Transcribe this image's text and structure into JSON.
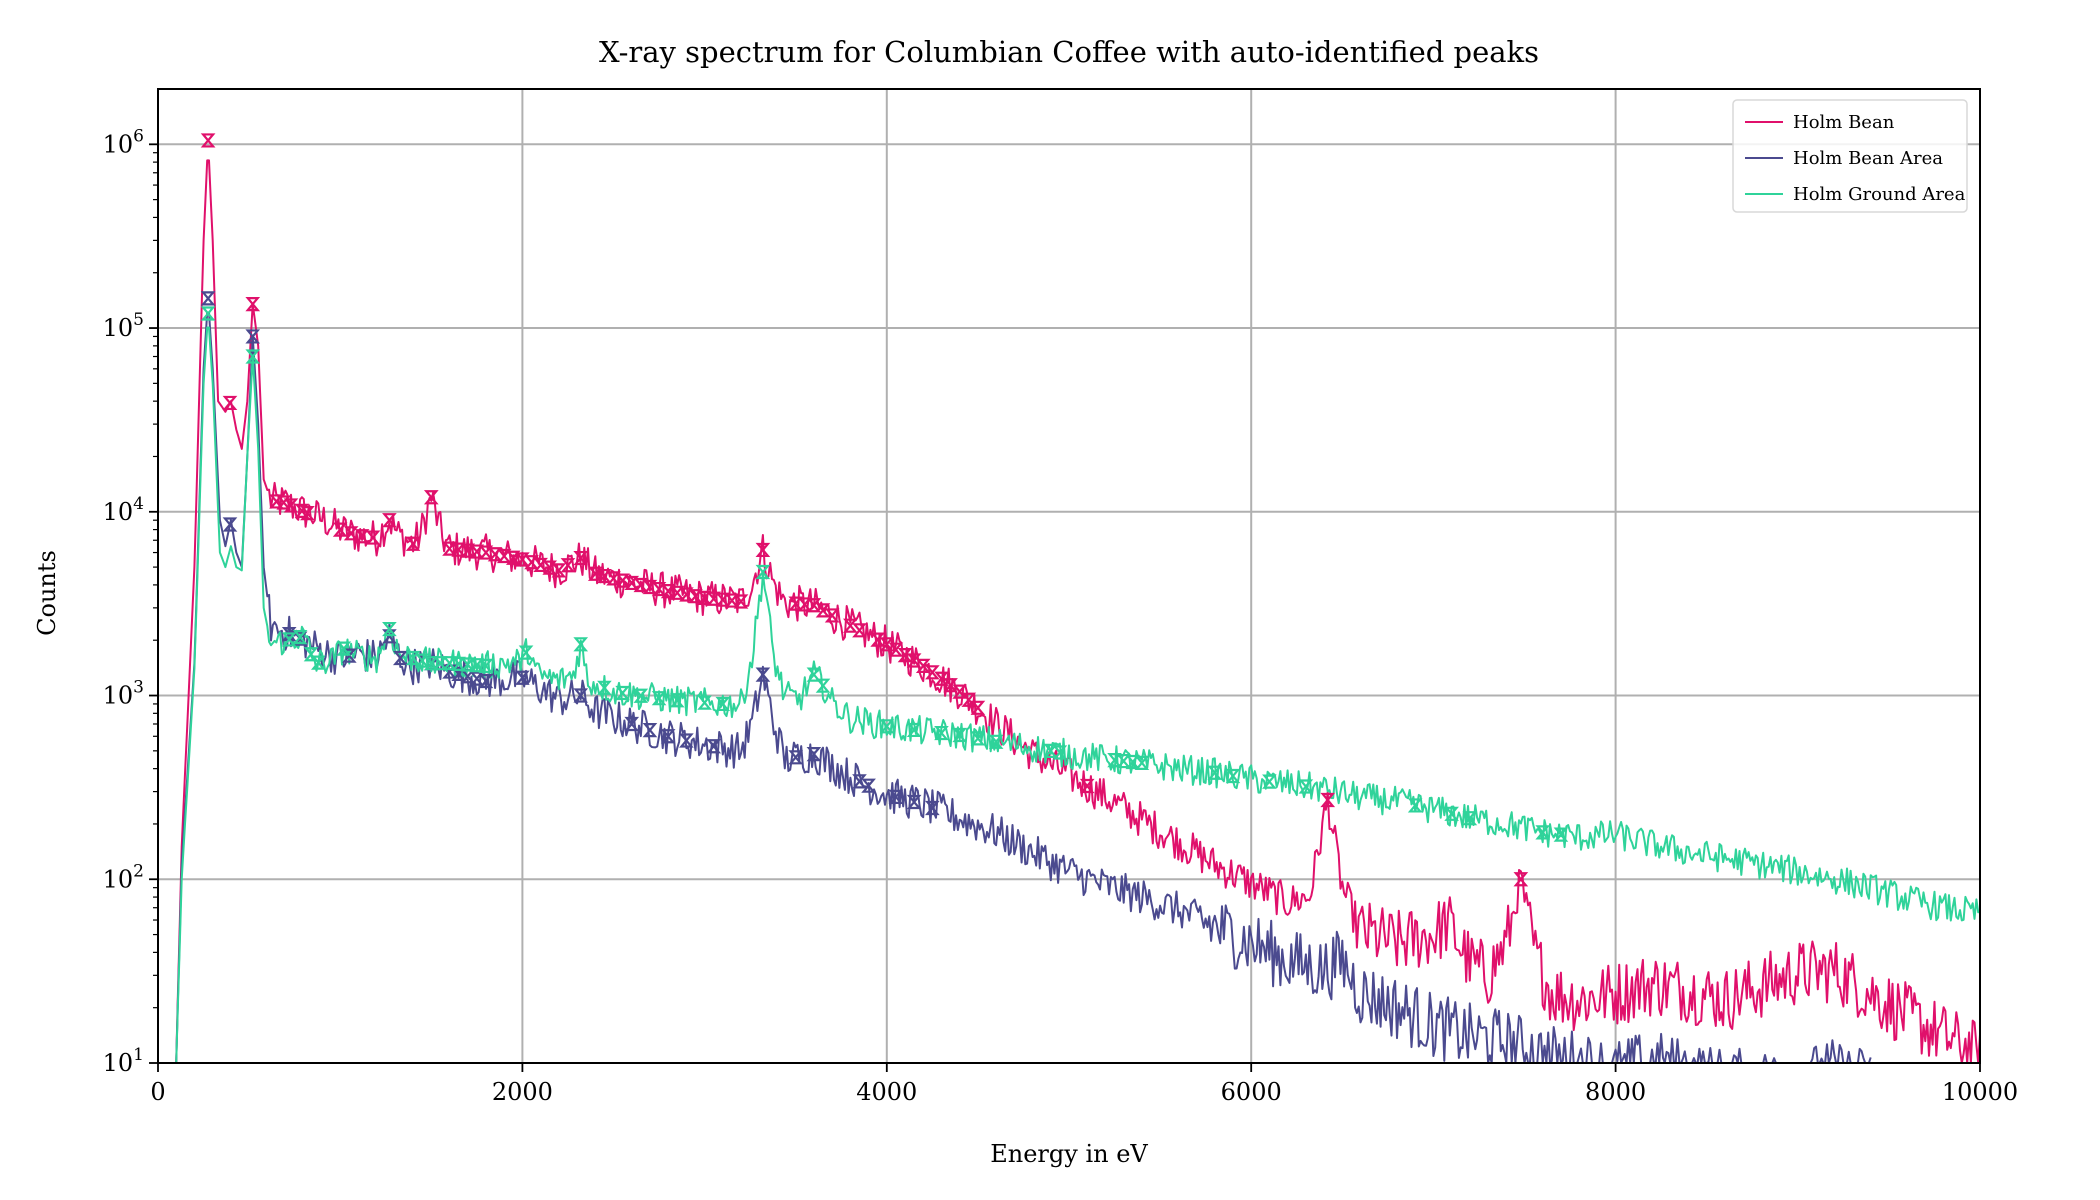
{
  "chart_data": {
    "type": "line",
    "title": "X-ray spectrum for Columbian Coffee with auto-identified peaks",
    "xlabel": "Energy in eV",
    "ylabel": "Counts",
    "xlim": [
      0,
      10000
    ],
    "ylim": [
      10,
      2000000
    ],
    "yscale": "log",
    "grid": true,
    "legend_position": "top-right",
    "x_ticks": [
      0,
      2000,
      4000,
      6000,
      8000,
      10000
    ],
    "y_ticks": [
      {
        "value": 10,
        "base": "10",
        "exp": "1"
      },
      {
        "value": 100,
        "base": "10",
        "exp": "2"
      },
      {
        "value": 1000,
        "base": "10",
        "exp": "3"
      },
      {
        "value": 10000,
        "base": "10",
        "exp": "4"
      },
      {
        "value": 100000,
        "base": "10",
        "exp": "5"
      },
      {
        "value": 1000000,
        "base": "10",
        "exp": "6"
      }
    ],
    "series": [
      {
        "name": "Holm Bean",
        "color": "#e0106b",
        "noise": 0.1,
        "points": [
          [
            100,
            10
          ],
          [
            130,
            150
          ],
          [
            200,
            5000
          ],
          [
            250,
            300000
          ],
          [
            275,
            1050000
          ],
          [
            300,
            300000
          ],
          [
            330,
            40000
          ],
          [
            370,
            35000
          ],
          [
            400,
            40000
          ],
          [
            430,
            28000
          ],
          [
            460,
            22000
          ],
          [
            490,
            40000
          ],
          [
            520,
            135000
          ],
          [
            550,
            80000
          ],
          [
            580,
            15000
          ],
          [
            620,
            11500
          ],
          [
            700,
            11200
          ],
          [
            800,
            10000
          ],
          [
            900,
            9200
          ],
          [
            1000,
            8000
          ],
          [
            1100,
            7400
          ],
          [
            1200,
            7200
          ],
          [
            1270,
            9000
          ],
          [
            1320,
            7500
          ],
          [
            1400,
            6700
          ],
          [
            1440,
            7500
          ],
          [
            1500,
            12000
          ],
          [
            1560,
            7300
          ],
          [
            1600,
            6300
          ],
          [
            1800,
            6000
          ],
          [
            2000,
            5500
          ],
          [
            2200,
            4800
          ],
          [
            2320,
            5600
          ],
          [
            2400,
            4600
          ],
          [
            2600,
            4100
          ],
          [
            2800,
            3700
          ],
          [
            3000,
            3400
          ],
          [
            3200,
            3250
          ],
          [
            3260,
            4000
          ],
          [
            3320,
            6200
          ],
          [
            3380,
            4000
          ],
          [
            3440,
            3200
          ],
          [
            3600,
            3100
          ],
          [
            3800,
            2400
          ],
          [
            4000,
            1900
          ],
          [
            4200,
            1450
          ],
          [
            4400,
            1050
          ],
          [
            4600,
            700
          ],
          [
            4800,
            480
          ],
          [
            5000,
            370
          ],
          [
            5200,
            280
          ],
          [
            5400,
            210
          ],
          [
            5600,
            160
          ],
          [
            5800,
            120
          ],
          [
            6000,
            95
          ],
          [
            6200,
            75
          ],
          [
            6320,
            80
          ],
          [
            6420,
            270
          ],
          [
            6500,
            90
          ],
          [
            6600,
            52
          ],
          [
            6800,
            45
          ],
          [
            7000,
            50
          ],
          [
            7080,
            58
          ],
          [
            7200,
            35
          ],
          [
            7300,
            30
          ],
          [
            7400,
            45
          ],
          [
            7480,
            100
          ],
          [
            7560,
            38
          ],
          [
            7650,
            24
          ],
          [
            7800,
            22
          ],
          [
            8000,
            24
          ],
          [
            8200,
            27
          ],
          [
            8400,
            25
          ],
          [
            8600,
            22
          ],
          [
            8800,
            26
          ],
          [
            9000,
            31
          ],
          [
            9200,
            32
          ],
          [
            9400,
            24
          ],
          [
            9600,
            18
          ],
          [
            9800,
            14
          ],
          [
            10000,
            11
          ]
        ],
        "peaks": [
          275,
          395,
          520,
          650,
          690,
          730,
          790,
          820,
          1000,
          1060,
          1120,
          1180,
          1270,
          1400,
          1500,
          1600,
          1650,
          1700,
          1750,
          1800,
          1850,
          1900,
          1950,
          2000,
          2050,
          2100,
          2150,
          2200,
          2250,
          2320,
          2400,
          2450,
          2500,
          2550,
          2600,
          2650,
          2700,
          2750,
          2800,
          2850,
          2900,
          2950,
          3000,
          3050,
          3100,
          3150,
          3200,
          3320,
          3500,
          3550,
          3600,
          3650,
          3700,
          3800,
          3850,
          3950,
          4000,
          4050,
          4100,
          4150,
          4200,
          4250,
          4300,
          4350,
          4400,
          4450,
          4500,
          5100,
          6420,
          7480
        ]
      },
      {
        "name": "Holm Bean Area",
        "color": "#4b4a8f",
        "noise": 0.1,
        "points": [
          [
            100,
            10
          ],
          [
            130,
            120
          ],
          [
            200,
            1500
          ],
          [
            250,
            60000
          ],
          [
            275,
            145000
          ],
          [
            300,
            60000
          ],
          [
            340,
            9000
          ],
          [
            370,
            6500
          ],
          [
            400,
            9000
          ],
          [
            430,
            6000
          ],
          [
            460,
            5000
          ],
          [
            490,
            20000
          ],
          [
            520,
            90000
          ],
          [
            550,
            30000
          ],
          [
            580,
            5000
          ],
          [
            620,
            2400
          ],
          [
            700,
            2200
          ],
          [
            800,
            2000
          ],
          [
            900,
            1750
          ],
          [
            1000,
            1600
          ],
          [
            1100,
            1700
          ],
          [
            1200,
            1600
          ],
          [
            1270,
            2100
          ],
          [
            1330,
            1600
          ],
          [
            1400,
            1450
          ],
          [
            1500,
            1500
          ],
          [
            1600,
            1350
          ],
          [
            1800,
            1200
          ],
          [
            2000,
            1250
          ],
          [
            2200,
            950
          ],
          [
            2320,
            1000
          ],
          [
            2400,
            820
          ],
          [
            2600,
            700
          ],
          [
            2800,
            600
          ],
          [
            3000,
            540
          ],
          [
            3200,
            500
          ],
          [
            3260,
            700
          ],
          [
            3320,
            1300
          ],
          [
            3380,
            700
          ],
          [
            3440,
            450
          ],
          [
            3600,
            480
          ],
          [
            3800,
            360
          ],
          [
            4000,
            290
          ],
          [
            4200,
            255
          ],
          [
            4400,
            215
          ],
          [
            4600,
            180
          ],
          [
            4800,
            140
          ],
          [
            5000,
            110
          ],
          [
            5200,
            92
          ],
          [
            5400,
            80
          ],
          [
            5600,
            68
          ],
          [
            5800,
            55
          ],
          [
            6000,
            45
          ],
          [
            6200,
            36
          ],
          [
            6400,
            32
          ],
          [
            6500,
            36
          ],
          [
            6600,
            24
          ],
          [
            6800,
            20
          ],
          [
            7000,
            16
          ],
          [
            7200,
            14
          ],
          [
            7400,
            13
          ],
          [
            7600,
            11
          ],
          [
            7800,
            10
          ],
          [
            8000,
            9
          ],
          [
            8200,
            10
          ],
          [
            8400,
            9
          ],
          [
            8600,
            8
          ],
          [
            8800,
            8
          ],
          [
            9000,
            8
          ],
          [
            9200,
            9
          ],
          [
            9400,
            8
          ]
        ],
        "peaks": [
          275,
          395,
          520,
          720,
          780,
          1050,
          1270,
          1330,
          1500,
          1600,
          1650,
          1700,
          1750,
          1800,
          2000,
          2320,
          2600,
          2700,
          2800,
          2900,
          3050,
          3320,
          3500,
          3600,
          3850,
          3900,
          4050,
          4150,
          4250
        ]
      },
      {
        "name": "Holm Ground Area",
        "color": "#2fd39a",
        "noise": 0.08,
        "points": [
          [
            100,
            10
          ],
          [
            130,
            100
          ],
          [
            200,
            1400
          ],
          [
            250,
            50000
          ],
          [
            275,
            120000
          ],
          [
            300,
            50000
          ],
          [
            340,
            6000
          ],
          [
            370,
            5000
          ],
          [
            400,
            6500
          ],
          [
            430,
            5000
          ],
          [
            460,
            4800
          ],
          [
            490,
            20000
          ],
          [
            520,
            70000
          ],
          [
            550,
            22000
          ],
          [
            580,
            3000
          ],
          [
            620,
            1900
          ],
          [
            700,
            2000
          ],
          [
            800,
            2100
          ],
          [
            860,
            1500
          ],
          [
            950,
            1550
          ],
          [
            1020,
            1800
          ],
          [
            1100,
            1650
          ],
          [
            1200,
            1600
          ],
          [
            1270,
            2300
          ],
          [
            1330,
            1650
          ],
          [
            1400,
            1600
          ],
          [
            1500,
            1500
          ],
          [
            1600,
            1500
          ],
          [
            1800,
            1450
          ],
          [
            2000,
            1550
          ],
          [
            2030,
            1800
          ],
          [
            2080,
            1300
          ],
          [
            2200,
            1200
          ],
          [
            2280,
            1300
          ],
          [
            2320,
            1900
          ],
          [
            2360,
            1200
          ],
          [
            2500,
            1050
          ],
          [
            2700,
            980
          ],
          [
            2900,
            930
          ],
          [
            3100,
            900
          ],
          [
            3200,
            900
          ],
          [
            3260,
            1600
          ],
          [
            3320,
            4700
          ],
          [
            3380,
            1600
          ],
          [
            3440,
            1000
          ],
          [
            3520,
            950
          ],
          [
            3600,
            1300
          ],
          [
            3660,
            1100
          ],
          [
            3700,
            920
          ],
          [
            3800,
            750
          ],
          [
            4000,
            680
          ],
          [
            4200,
            640
          ],
          [
            4400,
            610
          ],
          [
            4600,
            560
          ],
          [
            4800,
            520
          ],
          [
            5000,
            480
          ],
          [
            5200,
            450
          ],
          [
            5400,
            430
          ],
          [
            5600,
            400
          ],
          [
            5800,
            380
          ],
          [
            6000,
            350
          ],
          [
            6200,
            330
          ],
          [
            6400,
            310
          ],
          [
            6600,
            280
          ],
          [
            6800,
            265
          ],
          [
            7000,
            240
          ],
          [
            7200,
            215
          ],
          [
            7400,
            200
          ],
          [
            7600,
            180
          ],
          [
            7800,
            170
          ],
          [
            8000,
            175
          ],
          [
            8200,
            155
          ],
          [
            8400,
            140
          ],
          [
            8600,
            130
          ],
          [
            8800,
            120
          ],
          [
            9000,
            110
          ],
          [
            9200,
            100
          ],
          [
            9400,
            90
          ],
          [
            9600,
            78
          ],
          [
            9800,
            70
          ],
          [
            10000,
            65
          ]
        ],
        "peaks": [
          275,
          520,
          720,
          780,
          840,
          880,
          1020,
          1270,
          1400,
          1450,
          1500,
          1550,
          1600,
          1650,
          1700,
          1750,
          1800,
          2020,
          2320,
          2450,
          2550,
          2650,
          2750,
          2850,
          3000,
          3100,
          3320,
          3600,
          3650,
          4000,
          4150,
          4300,
          4400,
          4500,
          4600,
          4900,
          4950,
          5250,
          5300,
          5350,
          5400,
          5800,
          5900,
          6100,
          6300,
          6900,
          7100,
          7200,
          7600,
          7700
        ]
      }
    ]
  }
}
